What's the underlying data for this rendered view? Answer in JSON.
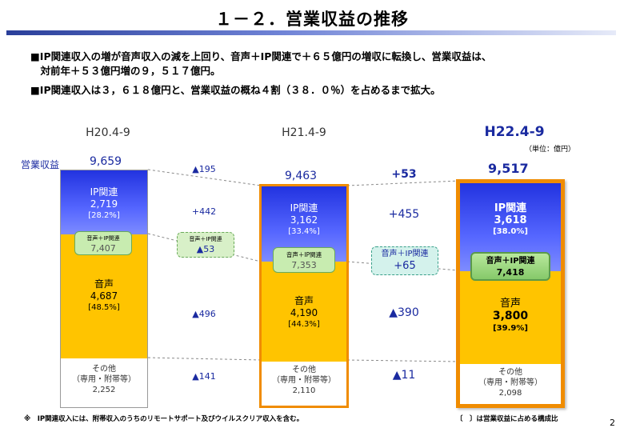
{
  "title": "１－２．営業収益の推移",
  "bullets": [
    "■IP関連収入の増が音声収入の減を上回り、音声＋IP関連で＋６５億円の増収に転換し、営業収益は、",
    "　対前年＋５３億円増の９，５１７億円。",
    "■IP関連収入は３，６１８億円と、営業収益の概ね４割（３８．０％）を占めるまで拡大。"
  ],
  "unit_label": "（単位：億円）",
  "revenue_label": "営業収益",
  "page_number": "2",
  "footnote_left": "※　IP関連収入には、附帯収入のうちのリモートサポート及びウイルスクリア収入を含む。",
  "footnote_right": "〔　〕は営業収益に占める構成比",
  "colors": {
    "ip": "#3344ee",
    "voice": "#ffc400",
    "other": "#ffffff",
    "highlight_border": "#f08c00",
    "accent_text": "#1a2aa0",
    "green_box": "#c8ecb0"
  },
  "chart_data": {
    "type": "bar",
    "stacked": true,
    "categories": [
      "H20.4-9",
      "H21.4-9",
      "H22.4-9"
    ],
    "totals": [
      "9,659",
      "9,463",
      "9,517"
    ],
    "series": [
      {
        "name": "IP関連",
        "values": [
          2719,
          3162,
          3618
        ],
        "labels": [
          "2,719",
          "3,162",
          "3,618"
        ],
        "shares": [
          "[28.2%]",
          "[33.4%]",
          "[38.0%]"
        ]
      },
      {
        "name": "音声",
        "values": [
          4687,
          4190,
          3800
        ],
        "labels": [
          "4,687",
          "4,190",
          "3,800"
        ],
        "shares": [
          "[48.5%]",
          "[44.3%]",
          "[39.9%]"
        ]
      },
      {
        "name": "その他（専用・附帯等）",
        "values": [
          2252,
          2110,
          2098
        ],
        "labels": [
          "2,252",
          "2,110",
          "2,098"
        ]
      }
    ],
    "combined_label": "音声＋IP関連",
    "combined_values": [
      "7,407",
      "7,353",
      "7,418"
    ],
    "other_label_1": "その他",
    "other_label_2": "（専用・附帯等）",
    "changes": [
      {
        "total": "▲195",
        "ip": "+442",
        "combined_title": "音声＋IP関連",
        "combined": "▲53",
        "voice": "▲496",
        "other": "▲141"
      },
      {
        "total": "+53",
        "ip": "+455",
        "combined_title": "音声＋IP関連",
        "combined": "+65",
        "voice": "▲390",
        "other": "▲11"
      }
    ]
  }
}
